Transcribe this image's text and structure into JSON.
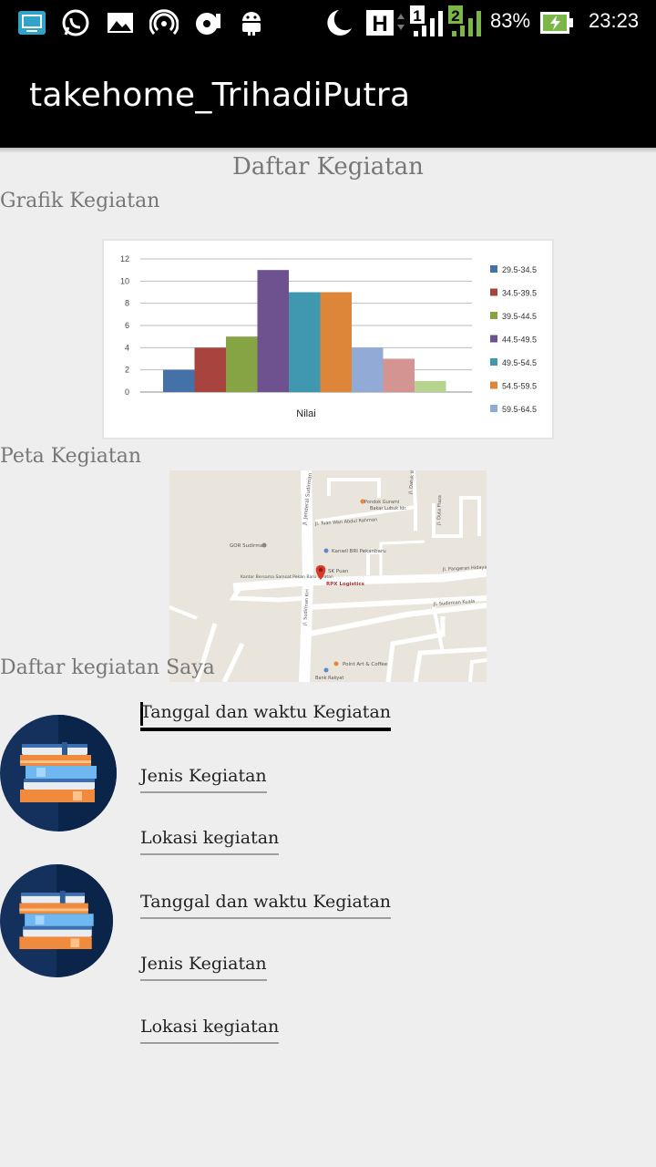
{
  "status_bar": {
    "battery_percent": "83%",
    "time": "23:23",
    "icons": [
      "cast-icon",
      "whatsapp-icon",
      "gallery-icon",
      "hotspot-icon",
      "media-icon",
      "android-icon",
      "moon-icon",
      "hsdpa-icon",
      "signal-sim1-icon",
      "signal-sim2-icon",
      "battery-charging-icon"
    ]
  },
  "app_bar": {
    "title": "takehome_TrihadiPutra"
  },
  "page": {
    "heading": "Daftar Kegiatan",
    "chart_section_label": "Grafik Kegiatan",
    "map_section_label": "Peta Kegiatan",
    "list_section_label": "Daftar kegiatan Saya"
  },
  "chart_data": {
    "type": "bar",
    "xlabel": "Nilai",
    "ylabel": "",
    "ylim": [
      0,
      12
    ],
    "yticks": [
      "0",
      "2",
      "4",
      "6",
      "8",
      "10",
      "12"
    ],
    "grid": true,
    "legend_position": "right",
    "series": [
      {
        "name": "29.5-34.5",
        "values": [
          2
        ],
        "color": "#4472a8"
      },
      {
        "name": "34.5-39.5",
        "values": [
          4
        ],
        "color": "#a8443e"
      },
      {
        "name": "39.5-44.5",
        "values": [
          5
        ],
        "color": "#86a444"
      },
      {
        "name": "44.5-49.5",
        "values": [
          11
        ],
        "color": "#6e5290"
      },
      {
        "name": "49.5-54.5",
        "values": [
          9
        ],
        "color": "#3f98b0"
      },
      {
        "name": "54.5-59.5",
        "values": [
          9
        ],
        "color": "#dd8538"
      },
      {
        "name": "59.5-64.5",
        "values": [
          4
        ],
        "color": "#92aad6"
      },
      {
        "name": "",
        "values": [
          3
        ],
        "color": "#d49492"
      },
      {
        "name": "",
        "values": [
          1
        ],
        "color": "#b6d38f"
      }
    ]
  },
  "map": {
    "labels": {
      "street_sudirman": "Jl. Jenderal Sudirman",
      "place_pondok_gurami": "Pondok Gurami",
      "place_bekasi": "Bakar Lubuk Idr.",
      "street_wan_abdul": "Jl. Tuan Wan Abdul Rahman",
      "street_datuk": "Jl. Datuk Wan",
      "street_duta": "Jl. Duta Plaza",
      "place_gor": "GOR Sudirman",
      "place_kanwil": "Kanwil BRI Pekanbaru",
      "place_sk_puan": "SK Puan",
      "place_rpx": "RPX Logistics",
      "place_kantor": "Kantor Bersama Samsat Pekan Baru Selatan",
      "street_pangeran": "Jl. Pangeran Hidayat",
      "street_sudirman_kiri": "Jl. Sudirman Kiri",
      "street_sudirman_kanan": "Jl. Sudirman Kuala",
      "place_point_art": "Point Art & Coffee",
      "place_bank": "Bank Rakyat"
    }
  },
  "activities": [
    {
      "date_time_label": "Tanggal dan waktu Kegiatan",
      "type_label": "Jenis Kegiatan",
      "location_label": "Lokasi kegiatan"
    },
    {
      "date_time_label": "Tanggal dan waktu Kegiatan",
      "type_label": "Jenis Kegiatan",
      "location_label": "Lokasi kegiatan"
    }
  ]
}
